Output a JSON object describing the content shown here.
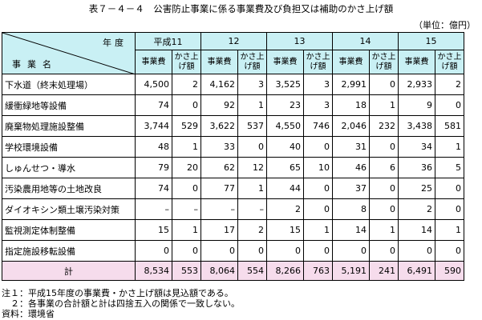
{
  "title": "表７－４－４　公害防止事業に係る事業費及び負担又は補助のかさ上げ額",
  "unit": "（単位：億円）",
  "header": {
    "corner_top": "年度",
    "corner_bottom": "事業名",
    "years": [
      "平成11",
      "12",
      "13",
      "14",
      "15"
    ],
    "col_cost": "事業費",
    "col_raise": "かさ上げ額"
  },
  "rows": [
    {
      "label": "下水道（終末処理場）",
      "values": [
        "4,500",
        "2",
        "4,162",
        "3",
        "3,525",
        "3",
        "2,991",
        "0",
        "2,933",
        "2"
      ]
    },
    {
      "label": "緩衝緑地等設備",
      "values": [
        "74",
        "0",
        "92",
        "1",
        "23",
        "3",
        "18",
        "1",
        "9",
        "0"
      ]
    },
    {
      "label": "廃棄物処理施設整備",
      "values": [
        "3,744",
        "529",
        "3,622",
        "537",
        "4,550",
        "746",
        "2,046",
        "232",
        "3,438",
        "581"
      ]
    },
    {
      "label": "学校環境設備",
      "values": [
        "48",
        "1",
        "33",
        "0",
        "40",
        "0",
        "31",
        "0",
        "34",
        "1"
      ]
    },
    {
      "label": "しゅんせつ・導水",
      "values": [
        "79",
        "20",
        "62",
        "12",
        "65",
        "10",
        "46",
        "6",
        "36",
        "5"
      ]
    },
    {
      "label": "汚染農用地等の土地改良",
      "values": [
        "74",
        "0",
        "77",
        "1",
        "44",
        "0",
        "37",
        "0",
        "25",
        "0"
      ]
    },
    {
      "label": "ダイオキシン類土壌汚染対策",
      "values": [
        "–",
        "–",
        "–",
        "–",
        "2",
        "0",
        "8",
        "0",
        "2",
        "0"
      ]
    },
    {
      "label": "監視測定体制整備",
      "values": [
        "15",
        "1",
        "17",
        "2",
        "15",
        "1",
        "14",
        "1",
        "14",
        "1"
      ]
    },
    {
      "label": "指定施設移転設備",
      "values": [
        "0",
        "0",
        "0",
        "0",
        "0",
        "0",
        "0",
        "0",
        "0",
        "0"
      ]
    }
  ],
  "total": {
    "label": "計",
    "values": [
      "8,534",
      "553",
      "8,064",
      "554",
      "8,266",
      "763",
      "5,191",
      "241",
      "6,491",
      "590"
    ]
  },
  "notes": [
    "注１：平成15年度の事業費・かさ上げ額は見込額である。",
    "　２：各事業の合計額と計は四捨五入の関係で一致しない。",
    "資料：環境省"
  ],
  "colors": {
    "header_bg": "#c9f0f4",
    "total_bg": "#f6dcec"
  }
}
